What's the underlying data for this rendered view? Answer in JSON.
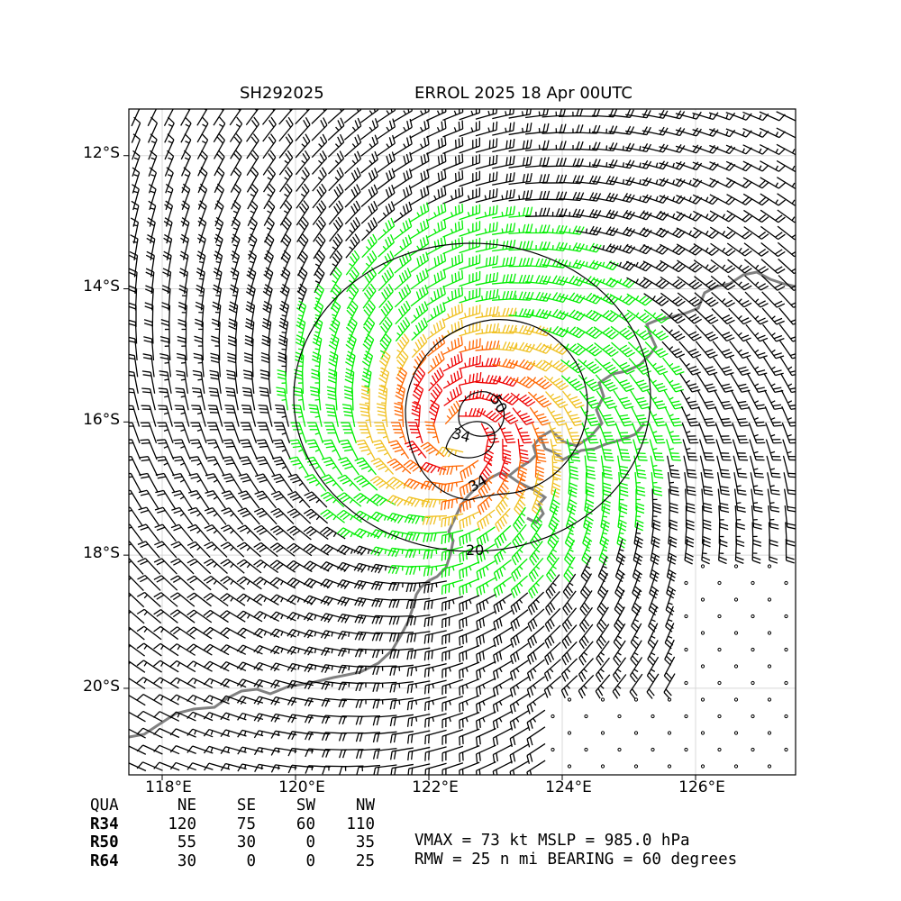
{
  "header": {
    "storm_id": "SH292025",
    "storm_title": "ERROL 2025 18 Apr 00UTC"
  },
  "map": {
    "lat_labels": [
      "12°S",
      "14°S",
      "16°S",
      "18°S",
      "20°S"
    ],
    "lon_labels": [
      "118°E",
      "120°E",
      "122°E",
      "124°E",
      "126°E"
    ],
    "lat_values": [
      -12,
      -14,
      -16,
      -18,
      -20
    ],
    "lon_values": [
      118,
      120,
      122,
      124,
      126
    ],
    "lon_range": [
      117.5,
      127.5
    ],
    "lat_range": [
      -21.3,
      -11.3
    ],
    "center": {
      "lon": 122.5,
      "lat": -16.2
    },
    "contour_labels": [
      "20",
      "34",
      "34",
      "50"
    ],
    "colors": {
      "below_34kt": "#000000",
      "r34": "#00ee00",
      "r50": "#f0c020",
      "r64": "#ff6600",
      "max": "#ee0000",
      "coastline": "#808080",
      "grid": "#d8d8d8"
    }
  },
  "quadrant_table": {
    "headers": [
      "QUA",
      "NE",
      "SE",
      "SW",
      "NW"
    ],
    "rows": [
      {
        "label": "R34",
        "values": [
          "120",
          "75",
          "60",
          "110"
        ]
      },
      {
        "label": "R50",
        "values": [
          "55",
          "30",
          "0",
          "35"
        ]
      },
      {
        "label": "R64",
        "values": [
          "30",
          "0",
          "0",
          "25"
        ]
      }
    ]
  },
  "summary": {
    "line1": "VMAX =  73 kt MSLP = 985.0 hPa",
    "line2": "RMW =  25 n mi BEARING =  60 degrees"
  }
}
